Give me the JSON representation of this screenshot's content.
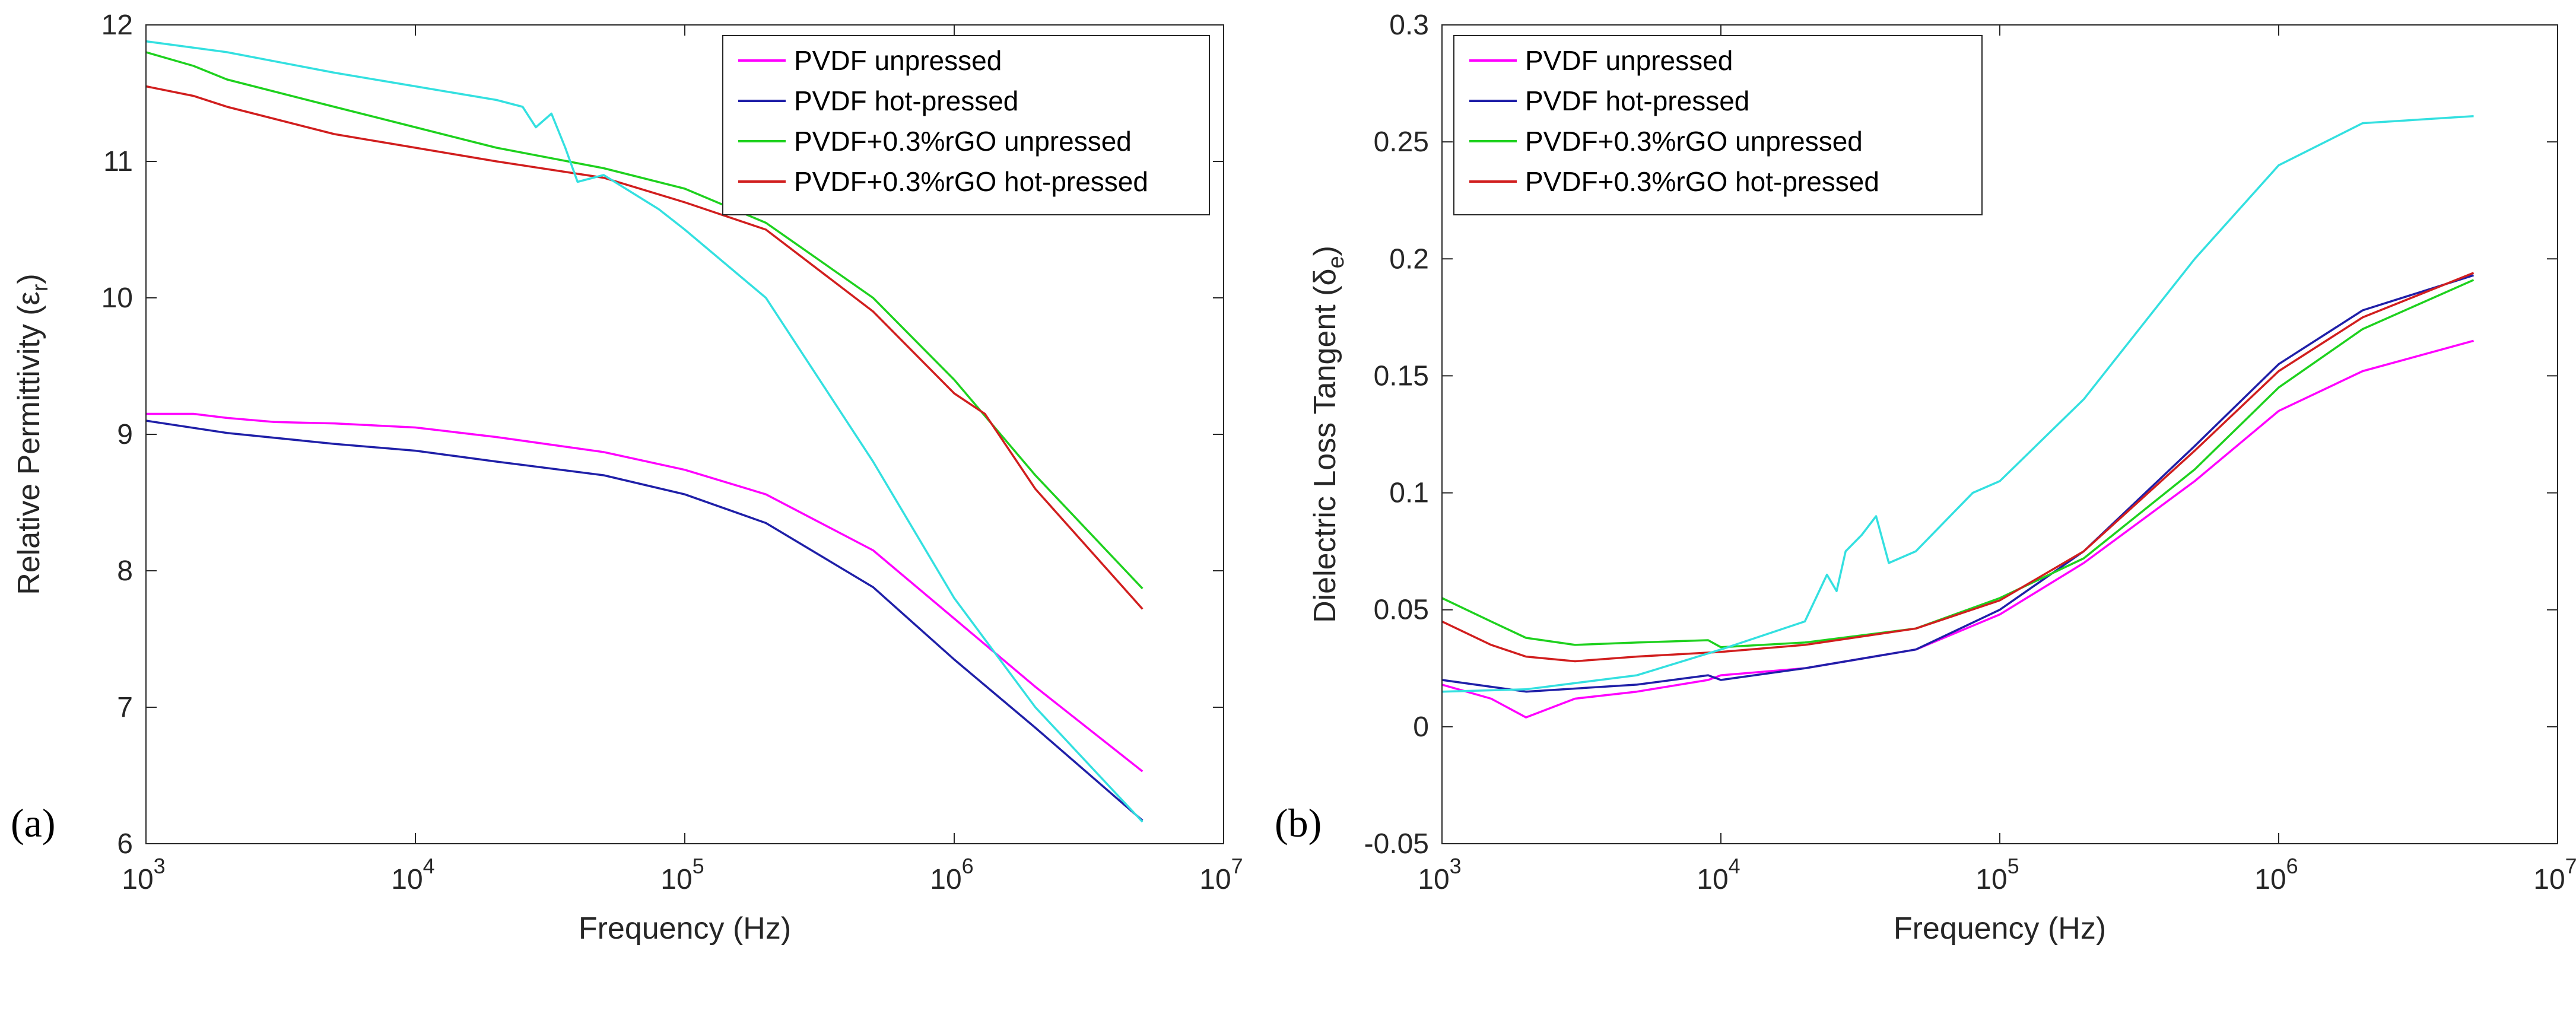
{
  "chart_data": [
    {
      "type": "line",
      "panel_label": "(a)",
      "xlabel": "Frequency (Hz)",
      "ylabel": "Relative Permittivity (",
      "ylabel_symbol": "ε",
      "ylabel_sub": "r",
      "ylabel_close": ")",
      "xscale": "log",
      "xlim": [
        1000,
        10000000
      ],
      "ylim": [
        6,
        12
      ],
      "x_ticks": [
        {
          "base": "10",
          "exp": "3"
        },
        {
          "base": "10",
          "exp": "4"
        },
        {
          "base": "10",
          "exp": "5"
        },
        {
          "base": "10",
          "exp": "6"
        },
        {
          "base": "10",
          "exp": "7"
        }
      ],
      "y_ticks": [
        "6",
        "7",
        "8",
        "9",
        "10",
        "11",
        "12"
      ],
      "legend_position": "top-right",
      "legend": [
        "PVDF unpressed",
        "PVDF hot-pressed",
        "PVDF+0.3%rGO unpressed",
        "PVDF+0.3%rGO hot-pressed"
      ],
      "series": [
        {
          "name": "PVDF unpressed",
          "color": "#ff00ff",
          "x": [
            1000,
            1500,
            2000,
            3000,
            5000,
            10000,
            20000,
            50000,
            100000,
            200000,
            500000,
            1000000,
            2000000,
            5000000
          ],
          "y": [
            9.15,
            9.15,
            9.12,
            9.09,
            9.08,
            9.05,
            8.98,
            8.87,
            8.74,
            8.56,
            8.15,
            7.65,
            7.15,
            6.53
          ]
        },
        {
          "name": "PVDF hot-pressed",
          "color": "#1f1fa8",
          "x": [
            1000,
            2000,
            5000,
            10000,
            20000,
            50000,
            100000,
            200000,
            500000,
            1000000,
            2000000,
            5000000
          ],
          "y": [
            9.1,
            9.01,
            8.93,
            8.88,
            8.8,
            8.7,
            8.56,
            8.35,
            7.88,
            7.35,
            6.85,
            6.17
          ]
        },
        {
          "name": "PVDF+0.3%rGO unpressed",
          "color": "#1ed11e",
          "x": [
            1000,
            1500,
            2000,
            5000,
            10000,
            20000,
            50000,
            100000,
            200000,
            500000,
            1000000,
            2000000,
            5000000
          ],
          "y": [
            11.8,
            11.7,
            11.6,
            11.4,
            11.25,
            11.1,
            10.95,
            10.8,
            10.55,
            10.0,
            9.4,
            8.7,
            7.87
          ]
        },
        {
          "name": "PVDF+0.3%rGO hot-pressed",
          "color": "#d11e1e",
          "x": [
            1000,
            1500,
            2000,
            5000,
            10000,
            20000,
            50000,
            100000,
            200000,
            500000,
            1000000,
            1300000,
            2000000,
            5000000
          ],
          "y": [
            11.55,
            11.48,
            11.4,
            11.2,
            11.1,
            11.0,
            10.88,
            10.7,
            10.5,
            9.9,
            9.3,
            9.15,
            8.6,
            7.72
          ]
        },
        {
          "name": "(unlabeled)",
          "color": "#33e0e0",
          "x": [
            1000,
            2000,
            5000,
            10000,
            20000,
            25000,
            28000,
            32000,
            36000,
            40000,
            50000,
            80000,
            100000,
            200000,
            500000,
            1000000,
            2000000,
            5000000
          ],
          "y": [
            11.88,
            11.8,
            11.65,
            11.55,
            11.45,
            11.4,
            11.25,
            11.35,
            11.1,
            10.85,
            10.9,
            10.65,
            10.5,
            10.0,
            8.8,
            7.8,
            7.0,
            6.16
          ]
        }
      ]
    },
    {
      "type": "line",
      "panel_label": "(b)",
      "xlabel": "Frequency (Hz)",
      "ylabel": "Dielectric Loss Tangent (",
      "ylabel_symbol": "δ",
      "ylabel_sub": "e",
      "ylabel_close": ")",
      "xscale": "log",
      "xlim": [
        1000,
        10000000
      ],
      "ylim": [
        -0.05,
        0.3
      ],
      "x_ticks": [
        {
          "base": "10",
          "exp": "3"
        },
        {
          "base": "10",
          "exp": "4"
        },
        {
          "base": "10",
          "exp": "5"
        },
        {
          "base": "10",
          "exp": "6"
        },
        {
          "base": "10",
          "exp": "7"
        }
      ],
      "y_ticks": [
        "-0.05",
        "0",
        "0.05",
        "0.1",
        "0.15",
        "0.2",
        "0.25",
        "0.3"
      ],
      "legend_position": "top-left",
      "legend": [
        "PVDF unpressed",
        "PVDF hot-pressed",
        "PVDF+0.3%rGO unpressed",
        "PVDF+0.3%rGO hot-pressed"
      ],
      "series": [
        {
          "name": "PVDF unpressed",
          "color": "#ff00ff",
          "x": [
            1000,
            1500,
            2000,
            3000,
            5000,
            9000,
            10000,
            20000,
            50000,
            100000,
            200000,
            500000,
            1000000,
            2000000,
            5000000
          ],
          "y": [
            0.018,
            0.012,
            0.004,
            0.012,
            0.015,
            0.02,
            0.022,
            0.025,
            0.033,
            0.048,
            0.07,
            0.105,
            0.135,
            0.152,
            0.165
          ]
        },
        {
          "name": "PVDF hot-pressed",
          "color": "#1f1fa8",
          "x": [
            1000,
            2000,
            5000,
            9000,
            10000,
            20000,
            50000,
            100000,
            200000,
            500000,
            1000000,
            2000000,
            5000000
          ],
          "y": [
            0.02,
            0.015,
            0.018,
            0.022,
            0.02,
            0.025,
            0.033,
            0.05,
            0.075,
            0.12,
            0.155,
            0.178,
            0.193
          ]
        },
        {
          "name": "PVDF+0.3%rGO unpressed",
          "color": "#1ed11e",
          "x": [
            1000,
            1500,
            2000,
            3000,
            5000,
            9000,
            10000,
            20000,
            50000,
            100000,
            200000,
            500000,
            1000000,
            2000000,
            5000000
          ],
          "y": [
            0.055,
            0.045,
            0.038,
            0.035,
            0.036,
            0.037,
            0.034,
            0.036,
            0.042,
            0.055,
            0.072,
            0.11,
            0.145,
            0.17,
            0.191
          ]
        },
        {
          "name": "PVDF+0.3%rGO hot-pressed",
          "color": "#d11e1e",
          "x": [
            1000,
            1500,
            2000,
            3000,
            5000,
            10000,
            20000,
            50000,
            100000,
            200000,
            500000,
            1000000,
            2000000,
            5000000
          ],
          "y": [
            0.045,
            0.035,
            0.03,
            0.028,
            0.03,
            0.032,
            0.035,
            0.042,
            0.054,
            0.075,
            0.118,
            0.152,
            0.175,
            0.194
          ]
        },
        {
          "name": "(unlabeled)",
          "color": "#33e0e0",
          "x": [
            1000,
            2000,
            5000,
            10000,
            20000,
            24000,
            26000,
            28000,
            32000,
            36000,
            40000,
            50000,
            80000,
            100000,
            200000,
            500000,
            1000000,
            2000000,
            5000000
          ],
          "y": [
            0.015,
            0.016,
            0.022,
            0.033,
            0.045,
            0.065,
            0.058,
            0.075,
            0.082,
            0.09,
            0.07,
            0.075,
            0.1,
            0.105,
            0.14,
            0.2,
            0.24,
            0.258,
            0.261
          ]
        }
      ]
    }
  ]
}
